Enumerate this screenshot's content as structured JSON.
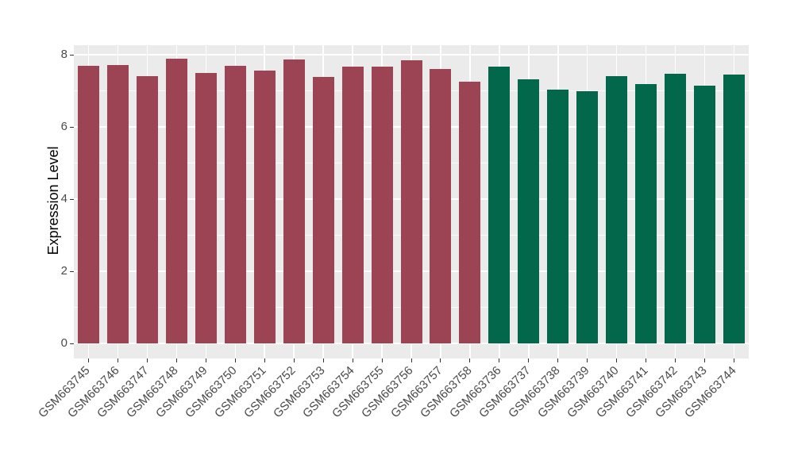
{
  "chart_data": {
    "type": "bar",
    "title": "",
    "xlabel": "",
    "ylabel": "Expression Level",
    "yticks": [
      0,
      2,
      4,
      6,
      8
    ],
    "minor_gridlines": [
      1,
      3,
      5,
      7
    ],
    "ylim": [
      -0.42,
      8.29
    ],
    "grid": "on",
    "legend": "none",
    "categories": [
      "GSM663745",
      "GSM663746",
      "GSM663747",
      "GSM663748",
      "GSM663749",
      "GSM663750",
      "GSM663751",
      "GSM663752",
      "GSM663753",
      "GSM663754",
      "GSM663755",
      "GSM663756",
      "GSM663757",
      "GSM663758",
      "GSM663736",
      "GSM663737",
      "GSM663738",
      "GSM663739",
      "GSM663740",
      "GSM663741",
      "GSM663742",
      "GSM663743",
      "GSM663744"
    ],
    "values": [
      7.7,
      7.72,
      7.41,
      7.88,
      7.49,
      7.69,
      7.56,
      7.87,
      7.39,
      7.68,
      7.66,
      7.85,
      7.61,
      7.26,
      7.68,
      7.31,
      7.04,
      6.98,
      7.41,
      7.19,
      7.47,
      7.15,
      7.46
    ],
    "groups": [
      {
        "name": "samples-GSM663745-GSM663758",
        "color": "#9C4454",
        "start": 0,
        "count": 14
      },
      {
        "name": "samples-GSM663736-GSM663744",
        "color": "#03684B",
        "start": 14,
        "count": 9
      }
    ],
    "colors": {
      "panel_bg": "#EBEBEB",
      "grid": "#FFFFFF",
      "tick": "#333333",
      "axis_text": "#4A4A4A",
      "axis_title": "#000000",
      "background": "#FFFFFF"
    }
  }
}
